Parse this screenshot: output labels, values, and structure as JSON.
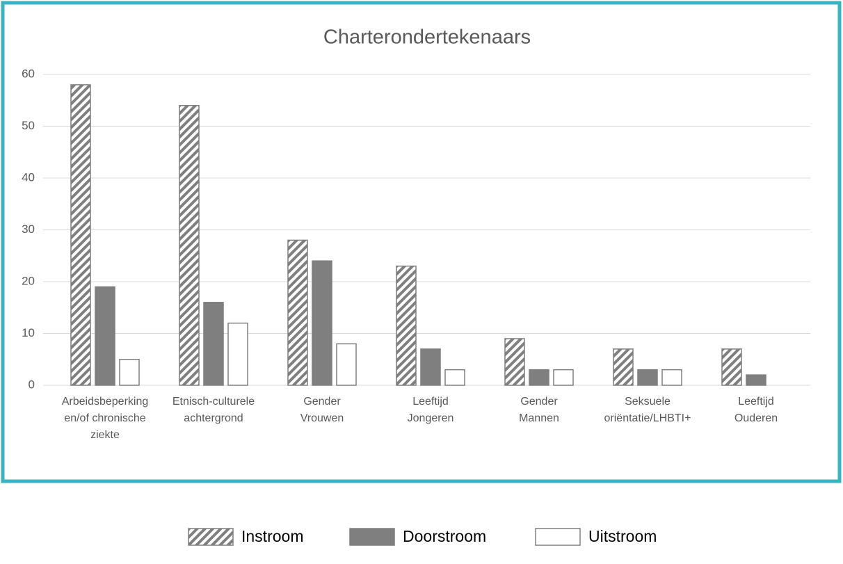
{
  "chart_data": {
    "type": "bar",
    "title": "Charterondertekenaars",
    "categories": [
      "Arbeidsbeperking\nen/of chronische\nziekte",
      "Etnisch-culturele\nachtergrond",
      "Gender\nVrouwen",
      "Leeftijd\nJongeren",
      "Gender\nMannen",
      "Seksuele\noriëntatie/LHBTI+",
      "Leeftijd\nOuderen"
    ],
    "series": [
      {
        "name": "Instroom",
        "color": "#7f7f7f",
        "pattern": "hatch",
        "values": [
          58,
          54,
          28,
          23,
          9,
          7,
          7
        ]
      },
      {
        "name": "Doorstroom",
        "color": "#7f7f7f",
        "values": [
          19,
          16,
          24,
          7,
          3,
          3,
          2
        ]
      },
      {
        "name": "Uitstroom",
        "color": "#ffffff",
        "values": [
          5,
          12,
          8,
          3,
          3,
          3,
          0
        ]
      }
    ],
    "ylim": [
      0,
      60
    ],
    "yticks": [
      0,
      10,
      20,
      30,
      40,
      50,
      60
    ],
    "grid": true,
    "legend": "bottom"
  }
}
